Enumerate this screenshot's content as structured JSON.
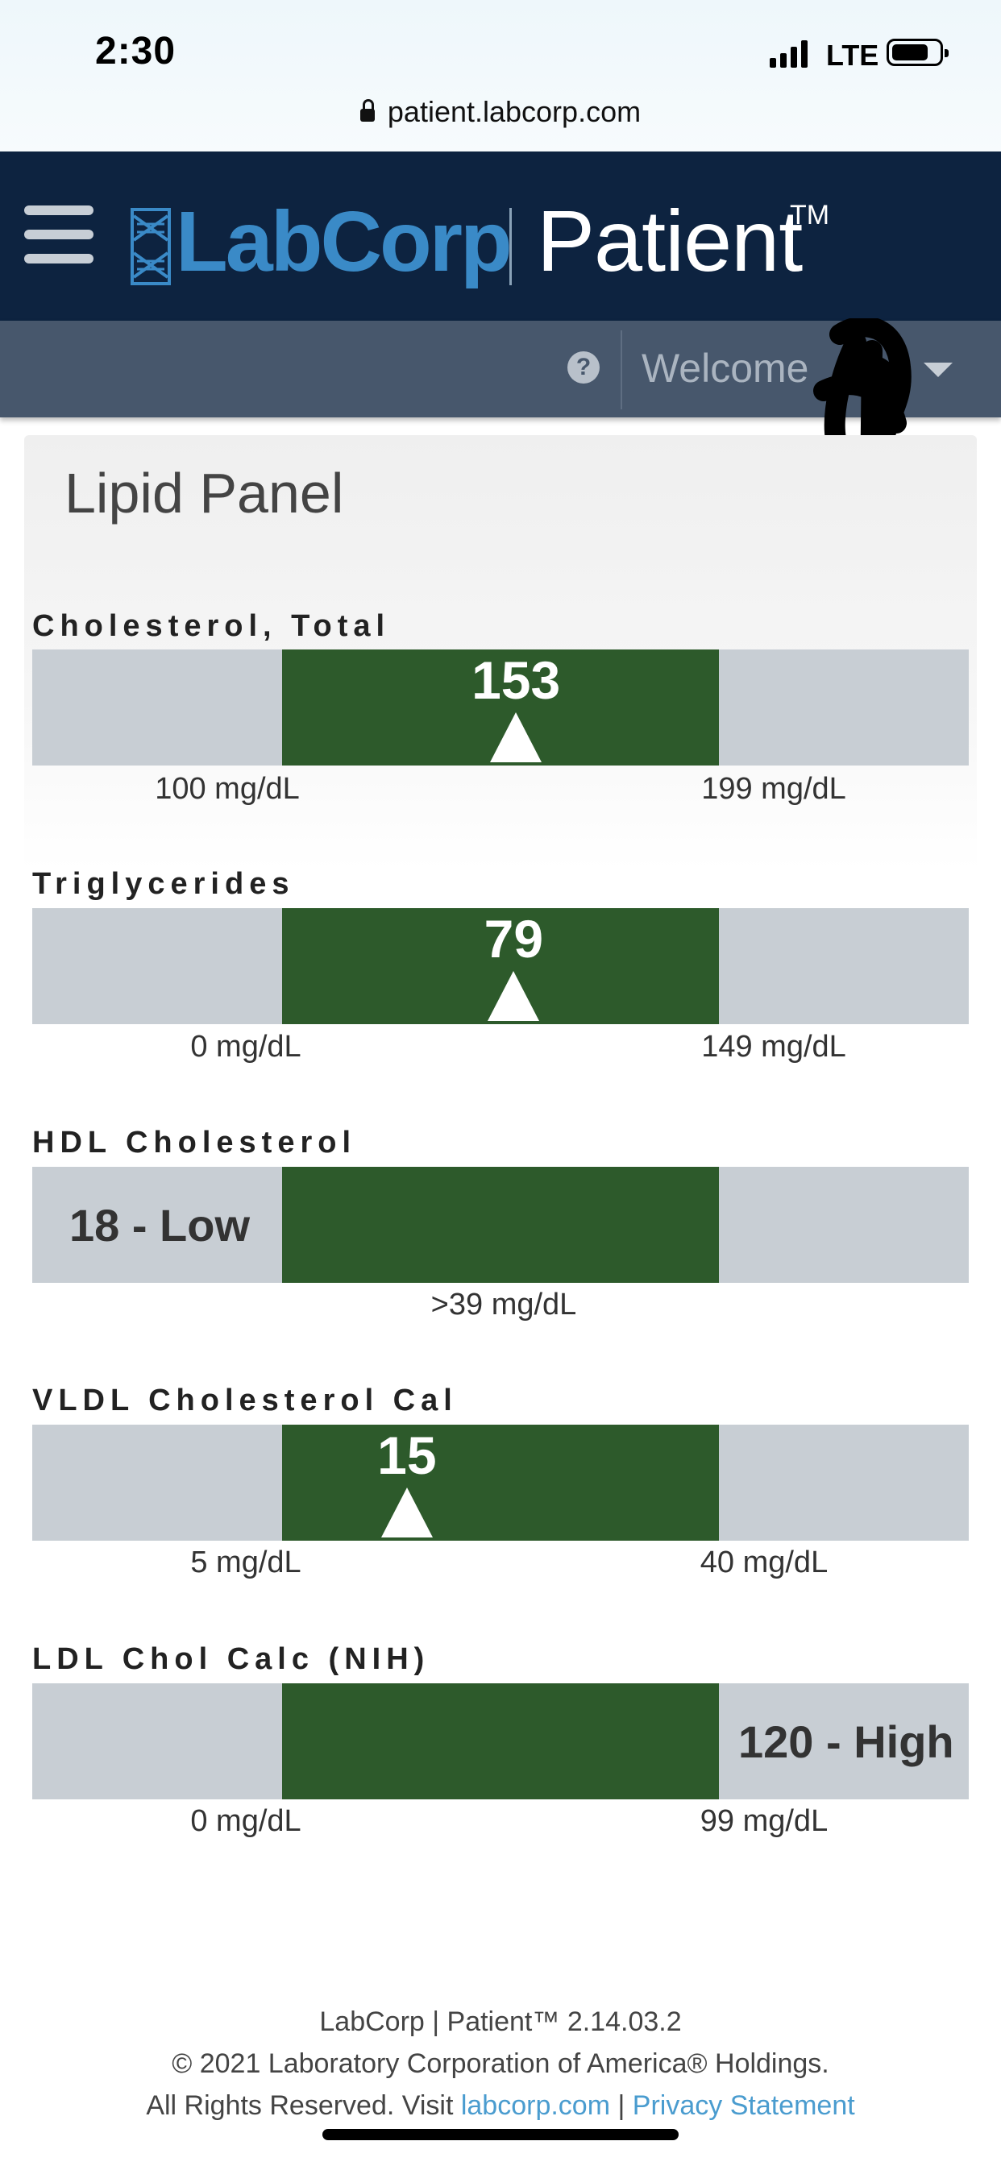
{
  "status_bar": {
    "time": "2:30",
    "network": "LTE",
    "url": "patient.labcorp.com"
  },
  "header": {
    "brand": "LabCorp",
    "product": "Patient",
    "trademark": "TM"
  },
  "subnav": {
    "help_glyph": "?",
    "welcome": "Welcome"
  },
  "panel": {
    "title": "Lipid Panel",
    "tests": [
      {
        "name": "Cholesterol, Total",
        "value": "153",
        "low": "100 mg/dL",
        "high": "199 mg/dL",
        "low_num": 100,
        "high_num": 199,
        "result": 153,
        "status": "normal"
      },
      {
        "name": "Triglycerides",
        "value": "79",
        "low": "0 mg/dL",
        "high": "149 mg/dL",
        "low_num": 0,
        "high_num": 149,
        "result": 79,
        "status": "normal"
      },
      {
        "name": "HDL Cholesterol",
        "value": "18 - Low",
        "range_text": ">39 mg/dL",
        "result": 18,
        "status": "low"
      },
      {
        "name": "VLDL Cholesterol Cal",
        "value": "15",
        "low": "5 mg/dL",
        "high": "40 mg/dL",
        "low_num": 5,
        "high_num": 40,
        "result": 15,
        "status": "normal"
      },
      {
        "name": "LDL Chol Calc (NIH)",
        "value": "120 - High",
        "low": "0 mg/dL",
        "high": "99 mg/dL",
        "low_num": 0,
        "high_num": 99,
        "result": 120,
        "status": "high"
      }
    ]
  },
  "footer": {
    "version": "LabCorp | Patient™ 2.14.03.2",
    "copyright": "© 2021 Laboratory Corporation of America® Holdings.",
    "rights": "All Rights Reserved. Visit",
    "link_site": "labcorp.com",
    "separator": "|",
    "link_privacy": "Privacy Statement"
  },
  "colors": {
    "header_bg": "#0d2340",
    "subnav_bg": "#47576c",
    "brand_blue": "#3a8ac7",
    "range_green": "#2d5a2b",
    "bar_gray": "#c8ced4",
    "link": "#4a9ccf"
  }
}
